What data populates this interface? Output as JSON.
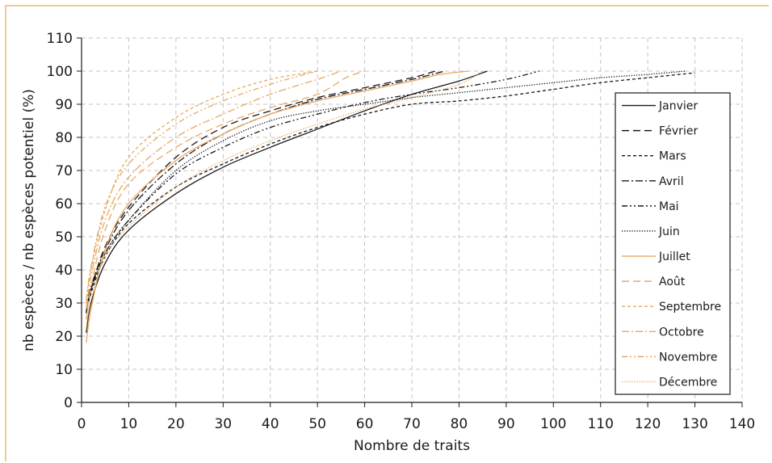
{
  "chart_data": {
    "type": "line",
    "xlabel": "Nombre de traits",
    "ylabel": "nb espèces / nb espèces potentiel (%)",
    "xlim": [
      0,
      140
    ],
    "ylim": [
      0,
      110
    ],
    "xticks": [
      0,
      10,
      20,
      30,
      40,
      50,
      60,
      70,
      80,
      90,
      100,
      110,
      120,
      130,
      140
    ],
    "yticks": [
      0,
      10,
      20,
      30,
      40,
      50,
      60,
      70,
      80,
      90,
      100,
      110
    ],
    "grid": true,
    "legend_position": "right",
    "series": [
      {
        "name": "Janvier",
        "color": "#1a1a1a",
        "dash": "solid",
        "points": [
          [
            1,
            21
          ],
          [
            2,
            30
          ],
          [
            5,
            42
          ],
          [
            10,
            52
          ],
          [
            20,
            63
          ],
          [
            30,
            71
          ],
          [
            40,
            77
          ],
          [
            50,
            82.5
          ],
          [
            60,
            88
          ],
          [
            70,
            93
          ],
          [
            80,
            97
          ],
          [
            86,
            100
          ]
        ]
      },
      {
        "name": "Février",
        "color": "#1a1a1a",
        "dash": "long-dash",
        "points": [
          [
            1,
            27
          ],
          [
            2,
            34
          ],
          [
            5,
            47
          ],
          [
            10,
            59
          ],
          [
            20,
            74
          ],
          [
            30,
            83
          ],
          [
            40,
            88
          ],
          [
            50,
            92
          ],
          [
            60,
            95
          ],
          [
            70,
            98
          ],
          [
            75,
            100
          ]
        ]
      },
      {
        "name": "Mars",
        "color": "#1a1a1a",
        "dash": "short-dash",
        "points": [
          [
            1,
            27
          ],
          [
            2,
            33
          ],
          [
            5,
            44
          ],
          [
            10,
            54
          ],
          [
            20,
            65
          ],
          [
            30,
            72
          ],
          [
            40,
            78
          ],
          [
            50,
            83
          ],
          [
            60,
            87
          ],
          [
            70,
            90
          ],
          [
            80,
            91
          ],
          [
            90,
            92.5
          ],
          [
            100,
            94.5
          ],
          [
            110,
            96.5
          ],
          [
            120,
            98
          ],
          [
            130,
            99.5
          ]
        ]
      },
      {
        "name": "Avril",
        "color": "#1a1a1a",
        "dash": "dash-dot",
        "points": [
          [
            1,
            28
          ],
          [
            2,
            35
          ],
          [
            5,
            46
          ],
          [
            10,
            58
          ],
          [
            20,
            72
          ],
          [
            30,
            81
          ],
          [
            40,
            87
          ],
          [
            50,
            91.5
          ],
          [
            60,
            94.5
          ],
          [
            70,
            97.5
          ],
          [
            77,
            100
          ]
        ]
      },
      {
        "name": "Mai",
        "color": "#1a1a1a",
        "dash": "dash-dot-dot",
        "points": [
          [
            1,
            27
          ],
          [
            2,
            34
          ],
          [
            5,
            45
          ],
          [
            10,
            55
          ],
          [
            20,
            69
          ],
          [
            30,
            77
          ],
          [
            40,
            83
          ],
          [
            50,
            87
          ],
          [
            60,
            90.5
          ],
          [
            70,
            93
          ],
          [
            80,
            95
          ],
          [
            90,
            97.5
          ],
          [
            97,
            100
          ]
        ]
      },
      {
        "name": "Juin",
        "color": "#1a1a1a",
        "dash": "dotted",
        "points": [
          [
            1,
            27
          ],
          [
            2,
            34
          ],
          [
            5,
            45
          ],
          [
            10,
            55
          ],
          [
            20,
            70
          ],
          [
            30,
            79
          ],
          [
            40,
            85
          ],
          [
            50,
            88
          ],
          [
            60,
            90
          ],
          [
            70,
            92
          ],
          [
            80,
            93.5
          ],
          [
            90,
            95
          ],
          [
            100,
            96.5
          ],
          [
            110,
            98
          ],
          [
            120,
            99
          ],
          [
            128,
            100
          ]
        ]
      },
      {
        "name": "Juillet",
        "color": "#e8a860",
        "dash": "solid",
        "points": [
          [
            1,
            18
          ],
          [
            2,
            28
          ],
          [
            5,
            46
          ],
          [
            10,
            60
          ],
          [
            20,
            73
          ],
          [
            30,
            81
          ],
          [
            40,
            87
          ],
          [
            50,
            91
          ],
          [
            60,
            94
          ],
          [
            70,
            97
          ],
          [
            76,
            99
          ],
          [
            82,
            100
          ]
        ]
      },
      {
        "name": "Août",
        "color": "#e8a860",
        "dash": "long-dash",
        "points": [
          [
            1,
            25
          ],
          [
            2,
            35
          ],
          [
            5,
            52
          ],
          [
            10,
            66
          ],
          [
            20,
            77
          ],
          [
            30,
            84
          ],
          [
            40,
            89
          ],
          [
            50,
            93
          ],
          [
            56,
            98
          ],
          [
            60,
            100
          ]
        ]
      },
      {
        "name": "Septembre",
        "color": "#e8a860",
        "dash": "short-dash",
        "points": [
          [
            1,
            30
          ],
          [
            2,
            40
          ],
          [
            5,
            58
          ],
          [
            10,
            74
          ],
          [
            20,
            86
          ],
          [
            30,
            93
          ],
          [
            40,
            97.5
          ],
          [
            50,
            100
          ]
        ]
      },
      {
        "name": "Octobre",
        "color": "#e8a860",
        "dash": "dash-dot",
        "points": [
          [
            1,
            28
          ],
          [
            2,
            38
          ],
          [
            5,
            55
          ],
          [
            10,
            68
          ],
          [
            20,
            80
          ],
          [
            30,
            87
          ],
          [
            40,
            93
          ],
          [
            50,
            97.5
          ],
          [
            55,
            100
          ]
        ]
      },
      {
        "name": "Novembre",
        "color": "#e8a860",
        "dash": "dash-dot-dot",
        "points": [
          [
            1,
            31
          ],
          [
            2,
            41
          ],
          [
            5,
            59
          ],
          [
            10,
            72
          ],
          [
            20,
            84
          ],
          [
            30,
            91
          ],
          [
            40,
            96
          ],
          [
            46,
            98.5
          ],
          [
            50,
            100
          ]
        ]
      },
      {
        "name": "Décembre",
        "color": "#e8a860",
        "dash": "dotted",
        "points": [
          [
            1,
            22
          ],
          [
            2,
            31
          ],
          [
            5,
            44
          ],
          [
            10,
            53
          ],
          [
            20,
            65
          ],
          [
            30,
            73
          ],
          [
            40,
            79
          ],
          [
            50,
            84
          ],
          [
            60,
            88.5
          ],
          [
            70,
            92
          ],
          [
            80,
            96
          ],
          [
            85,
            100
          ]
        ]
      }
    ]
  }
}
